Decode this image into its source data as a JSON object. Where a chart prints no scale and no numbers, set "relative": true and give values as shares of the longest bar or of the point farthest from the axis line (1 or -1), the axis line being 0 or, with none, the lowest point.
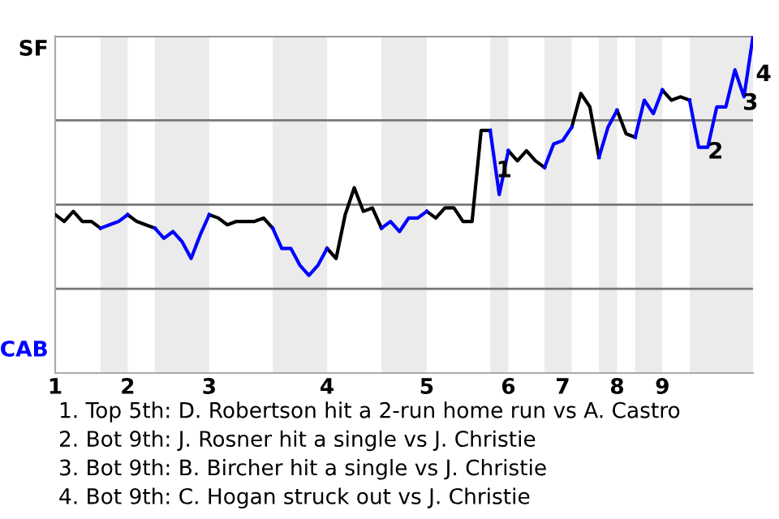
{
  "chart_data": {
    "type": "line",
    "relative": true,
    "categories": [
      "1",
      null,
      null,
      null,
      null,
      null,
      null,
      null,
      "2",
      null,
      null,
      null,
      null,
      null,
      null,
      null,
      null,
      "3",
      null,
      null,
      null,
      null,
      null,
      null,
      null,
      null,
      null,
      null,
      null,
      null,
      "4",
      null,
      null,
      null,
      null,
      null,
      null,
      null,
      null,
      null,
      null,
      "5",
      null,
      null,
      null,
      null,
      null,
      null,
      null,
      null,
      "6",
      null,
      null,
      null,
      null,
      null,
      "7",
      null,
      null,
      null,
      null,
      null,
      "8",
      null,
      null,
      null,
      null,
      "9",
      null,
      null,
      null,
      null,
      null,
      null,
      null,
      null,
      null,
      null
    ],
    "series": [
      {
        "color": "#000000",
        "values": [
          0.47,
          0.45,
          0.48,
          0.45,
          0.45,
          0.43,
          null,
          null,
          0.47,
          0.45,
          0.44,
          0.43,
          null,
          null,
          null,
          null,
          null,
          0.47,
          0.46,
          0.44,
          0.45,
          0.45,
          0.45,
          0.46,
          0.43,
          null,
          null,
          null,
          null,
          null,
          0.37,
          0.34,
          0.47,
          0.55,
          0.48,
          0.49,
          0.43,
          null,
          null,
          null,
          null,
          0.48,
          0.46,
          0.49,
          0.49,
          0.45,
          0.45,
          0.72,
          0.72,
          null,
          0.66,
          0.63,
          0.66,
          0.63,
          0.61,
          null,
          null,
          0.73,
          0.83,
          0.79,
          0.64,
          null,
          0.78,
          0.71,
          0.7,
          null,
          null,
          0.84,
          0.81,
          0.82,
          0.81,
          null,
          null,
          null,
          null,
          null,
          null,
          null
        ]
      },
      {
        "color": "#0000ff",
        "values": [
          null,
          null,
          null,
          null,
          null,
          0.43,
          0.44,
          0.45,
          0.47,
          null,
          null,
          0.43,
          0.4,
          0.42,
          0.39,
          0.34,
          0.41,
          0.47,
          null,
          null,
          null,
          null,
          null,
          null,
          0.43,
          0.37,
          0.37,
          0.32,
          0.29,
          0.32,
          0.37,
          null,
          null,
          null,
          null,
          null,
          0.43,
          0.45,
          0.42,
          0.46,
          0.46,
          0.48,
          null,
          null,
          null,
          null,
          null,
          null,
          0.72,
          0.53,
          0.66,
          null,
          null,
          null,
          0.61,
          0.68,
          0.69,
          0.73,
          null,
          null,
          0.64,
          0.73,
          0.78,
          null,
          0.7,
          0.81,
          0.77,
          0.84,
          null,
          null,
          0.81,
          0.67,
          0.67,
          0.79,
          0.79,
          0.9,
          0.82,
          1
        ]
      }
    ],
    "grid": "y",
    "marker": "none",
    "line_style": "solid",
    "annotations": [
      "SF",
      "CAB",
      "1",
      "2",
      "3",
      "4",
      "1. Top 5th: D. Robertson hit a 2-run home run vs A. Castro",
      "2. Bot 9th: J. Rosner hit a single vs J. Christie",
      "3. Bot 9th: B. Bircher hit a single vs J. Christie",
      "4. Bot 9th: C. Hogan struck out vs J. Christie"
    ]
  }
}
